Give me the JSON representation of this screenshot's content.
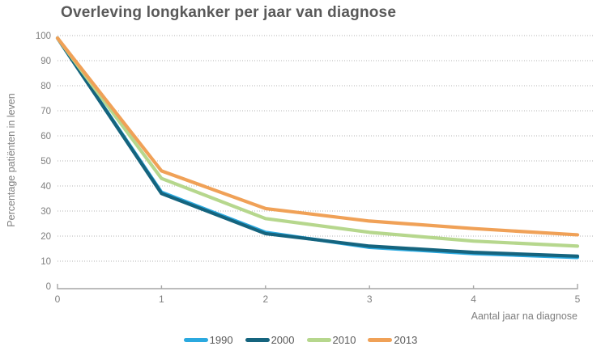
{
  "chart_data": {
    "type": "line",
    "title": "Overleving longkanker per jaar van diagnose",
    "xlabel": "Aantal jaar na diagnose",
    "ylabel": "Percentage patiënten in leven",
    "x": [
      0,
      1,
      2,
      3,
      4,
      5
    ],
    "x_ticks": [
      "0",
      "1",
      "2",
      "3",
      "4",
      "5"
    ],
    "y_ticks": [
      0,
      10,
      20,
      30,
      40,
      50,
      60,
      70,
      80,
      90,
      100
    ],
    "xlim": [
      0,
      5
    ],
    "ylim": [
      0,
      100
    ],
    "grid": "horizontal-dotted",
    "legend_position": "bottom",
    "series": [
      {
        "name": "1990",
        "color": "#2BA9DF",
        "values": [
          99,
          37.5,
          21.5,
          15.5,
          13,
          11.5
        ]
      },
      {
        "name": "2000",
        "color": "#15647E",
        "values": [
          99,
          37,
          21,
          16,
          13.5,
          12
        ]
      },
      {
        "name": "2010",
        "color": "#B6D78D",
        "values": [
          99,
          43,
          27,
          21.5,
          18,
          16
        ]
      },
      {
        "name": "2013",
        "color": "#F0A157",
        "values": [
          99,
          46,
          31,
          26,
          23,
          20.5
        ]
      }
    ]
  },
  "styles": {
    "title_color": "#595959",
    "axis_text_color": "#7F7F7F",
    "legend_text_color": "#595959",
    "grid_color": "#B3B3B3",
    "axis_line_color": "#A6A6A6",
    "line_width": 4.2
  }
}
